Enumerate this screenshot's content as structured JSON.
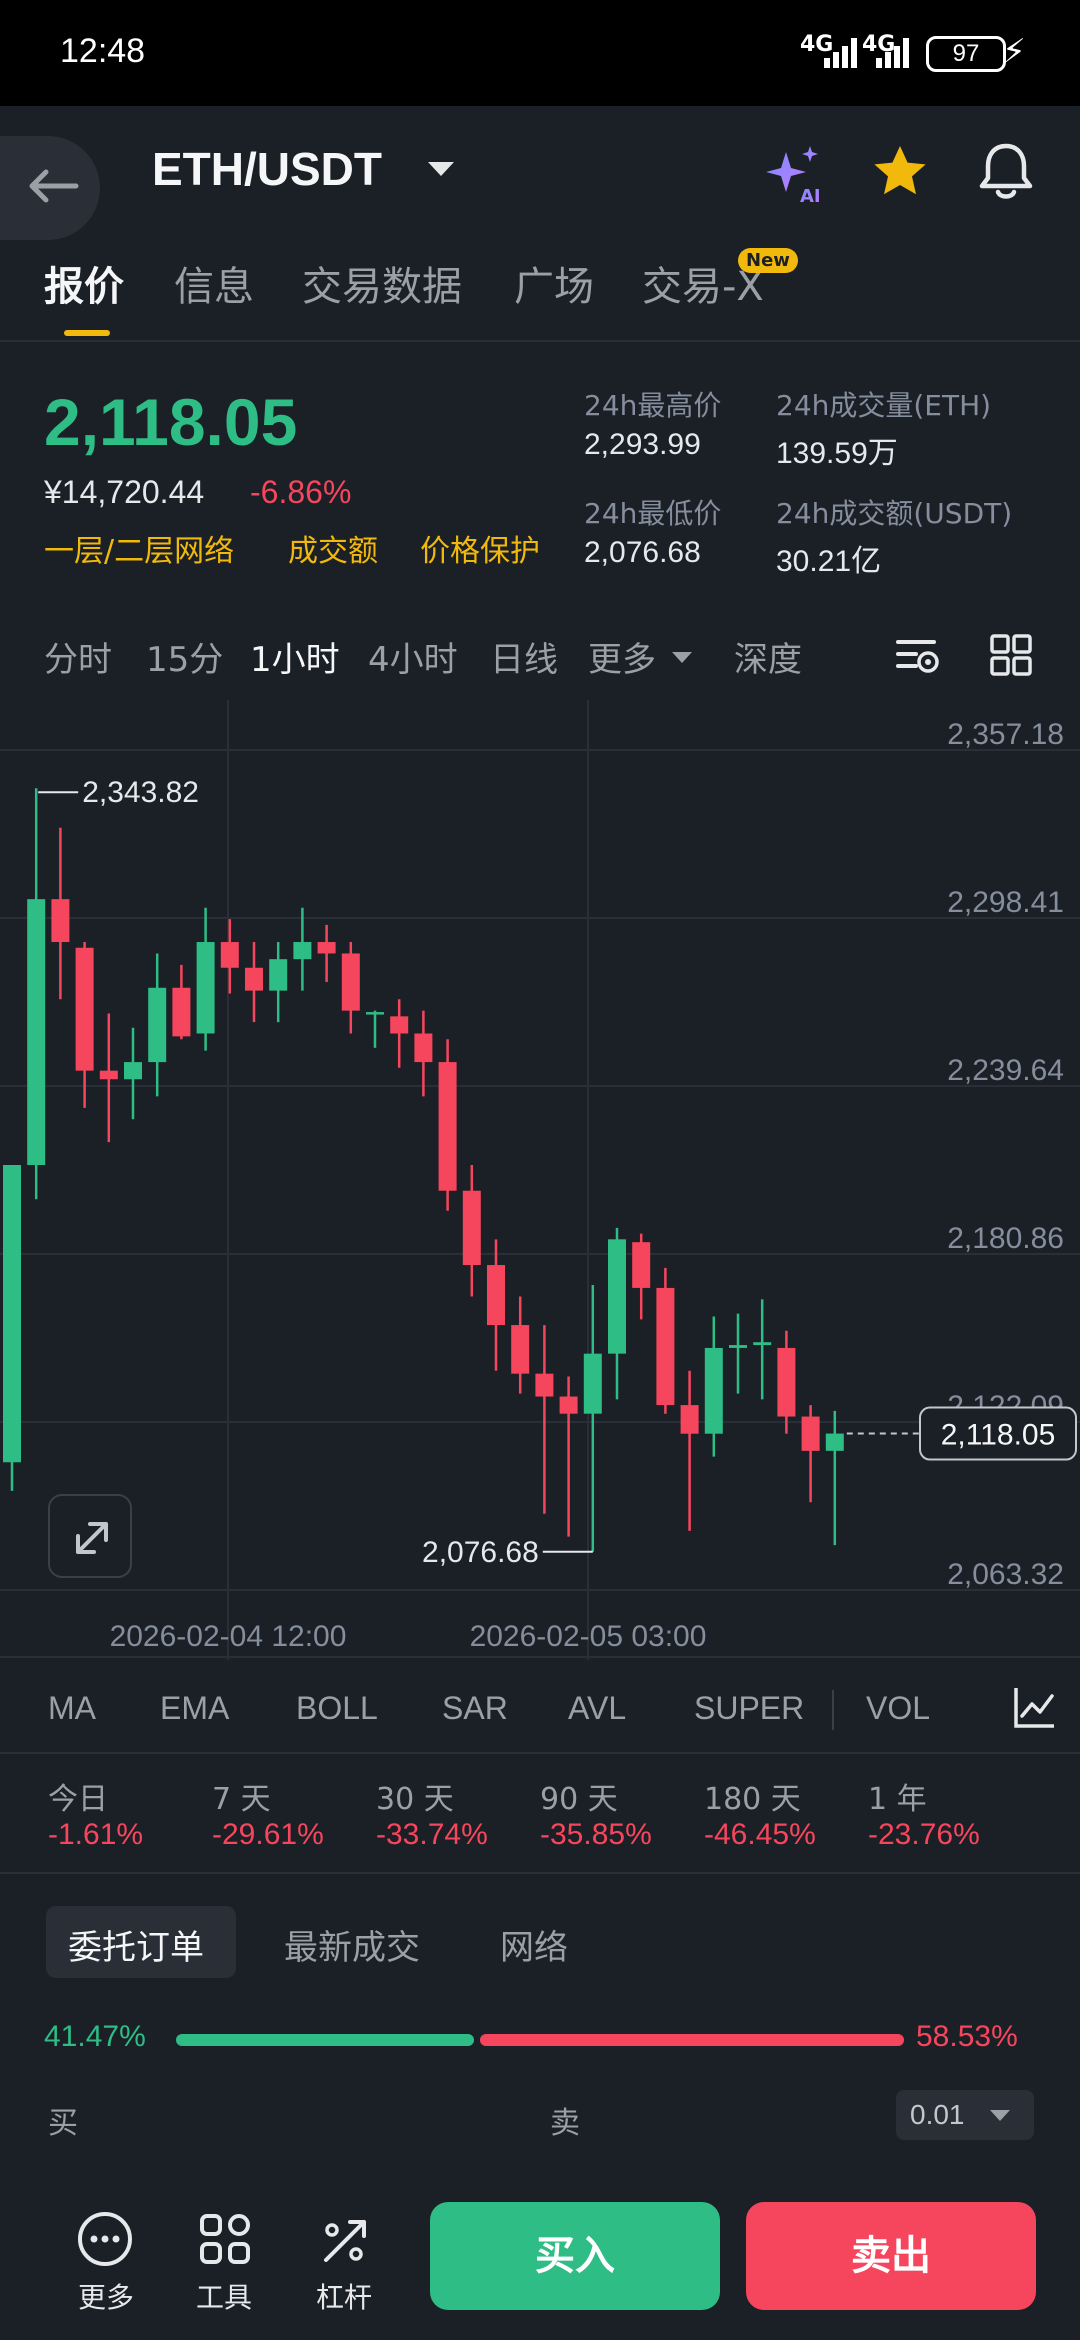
{
  "status_bar": {
    "time": "12:48",
    "signal_1": "4G",
    "signal_2": "4G",
    "battery": "97"
  },
  "header": {
    "pair": "ETH/USDT"
  },
  "tabs": [
    {
      "label": "报价"
    },
    {
      "label": "信息"
    },
    {
      "label": "交易数据"
    },
    {
      "label": "广场"
    },
    {
      "label": "交易-X"
    }
  ],
  "new_badge": "New",
  "ticker": {
    "last_price": "2,118.05",
    "cny_price": "¥14,720.44",
    "change": "-6.86%",
    "tags": [
      "一层/二层网络",
      "成交额",
      "价格保护"
    ],
    "high_label": "24h最高价",
    "high": "2,293.99",
    "low_label": "24h最低价",
    "low": "2,076.68",
    "vol_label": "24h成交量(ETH)",
    "vol": "139.59万",
    "turnover_label": "24h成交额(USDT)",
    "turnover": "30.21亿"
  },
  "intervals": [
    "分时",
    "15分",
    "1小时",
    "4小时",
    "日线",
    "更多",
    "深度"
  ],
  "chart_data": {
    "type": "candlestick",
    "y_ticks": [
      "2,357.18",
      "2,298.41",
      "2,239.64",
      "2,180.86",
      "2,122.09",
      "2,063.32"
    ],
    "x_ticks": [
      "2026-02-04 12:00",
      "2026-02-05 03:00"
    ],
    "high_marker": "2,343.82",
    "low_marker": "2,076.68",
    "current_price": "2,118.05",
    "ylim": [
      2063.32,
      2357.18
    ],
    "candles": [
      {
        "o": 2108.0,
        "h": 2212.0,
        "l": 2098.0,
        "c": 2212.0
      },
      {
        "o": 2212.0,
        "h": 2343.82,
        "l": 2200.0,
        "c": 2305.0
      },
      {
        "o": 2305.0,
        "h": 2330.0,
        "l": 2270.0,
        "c": 2290.0
      },
      {
        "o": 2288.0,
        "h": 2290.0,
        "l": 2232.0,
        "c": 2245.0
      },
      {
        "o": 2245.0,
        "h": 2265.0,
        "l": 2220.0,
        "c": 2242.0
      },
      {
        "o": 2242.0,
        "h": 2260.0,
        "l": 2228.0,
        "c": 2248.0
      },
      {
        "o": 2248.0,
        "h": 2286.0,
        "l": 2236.0,
        "c": 2274.0
      },
      {
        "o": 2274.0,
        "h": 2282.0,
        "l": 2256.0,
        "c": 2257.0
      },
      {
        "o": 2258.0,
        "h": 2302.0,
        "l": 2252.0,
        "c": 2290.0
      },
      {
        "o": 2290.0,
        "h": 2298.0,
        "l": 2272.0,
        "c": 2281.0
      },
      {
        "o": 2281.0,
        "h": 2290.0,
        "l": 2262.0,
        "c": 2273.0
      },
      {
        "o": 2273.0,
        "h": 2290.0,
        "l": 2262.0,
        "c": 2284.0
      },
      {
        "o": 2284.0,
        "h": 2302.0,
        "l": 2273.0,
        "c": 2290.0
      },
      {
        "o": 2290.0,
        "h": 2296.0,
        "l": 2276.0,
        "c": 2286.0
      },
      {
        "o": 2286.0,
        "h": 2290.0,
        "l": 2258.0,
        "c": 2266.0
      },
      {
        "o": 2265.0,
        "h": 2266.0,
        "l": 2253.0,
        "c": 2265.5
      },
      {
        "o": 2264.0,
        "h": 2270.0,
        "l": 2246.0,
        "c": 2258.0
      },
      {
        "o": 2258.0,
        "h": 2266.0,
        "l": 2236.0,
        "c": 2248.0
      },
      {
        "o": 2248.0,
        "h": 2256.0,
        "l": 2196.0,
        "c": 2203.0
      },
      {
        "o": 2203.0,
        "h": 2212.0,
        "l": 2166.0,
        "c": 2177.0
      },
      {
        "o": 2177.0,
        "h": 2186.0,
        "l": 2140.0,
        "c": 2156.0
      },
      {
        "o": 2156.0,
        "h": 2166.0,
        "l": 2132.0,
        "c": 2139.0
      },
      {
        "o": 2139.0,
        "h": 2156.0,
        "l": 2090.0,
        "c": 2131.0
      },
      {
        "o": 2131.0,
        "h": 2138.0,
        "l": 2082.0,
        "c": 2125.0
      },
      {
        "o": 2125.0,
        "h": 2170.0,
        "l": 2076.68,
        "c": 2146.0
      },
      {
        "o": 2146.0,
        "h": 2190.0,
        "l": 2130.0,
        "c": 2186.0
      },
      {
        "o": 2185.0,
        "h": 2188.0,
        "l": 2158.0,
        "c": 2169.0
      },
      {
        "o": 2169.0,
        "h": 2176.0,
        "l": 2125.0,
        "c": 2128.0
      },
      {
        "o": 2128.0,
        "h": 2140.0,
        "l": 2084.0,
        "c": 2118.0
      },
      {
        "o": 2118.0,
        "h": 2159.0,
        "l": 2110.0,
        "c": 2148.0
      },
      {
        "o": 2148.0,
        "h": 2160.0,
        "l": 2132.0,
        "c": 2149.0
      },
      {
        "o": 2149.0,
        "h": 2165.0,
        "l": 2130.0,
        "c": 2150.0
      },
      {
        "o": 2148.0,
        "h": 2154.0,
        "l": 2118.0,
        "c": 2124.0
      },
      {
        "o": 2124.0,
        "h": 2128.0,
        "l": 2094.0,
        "c": 2112.0
      },
      {
        "o": 2112.0,
        "h": 2126.0,
        "l": 2079.0,
        "c": 2118.05
      }
    ]
  },
  "indicators": [
    "MA",
    "EMA",
    "BOLL",
    "SAR",
    "AVL",
    "SUPER",
    "VOL"
  ],
  "performance": [
    {
      "label": "今日",
      "value": "-1.61%"
    },
    {
      "label": "7 天",
      "value": "-29.61%"
    },
    {
      "label": "30 天",
      "value": "-33.74%"
    },
    {
      "label": "90 天",
      "value": "-35.85%"
    },
    {
      "label": "180 天",
      "value": "-46.45%"
    },
    {
      "label": "1 年",
      "value": "-23.76%"
    }
  ],
  "orderbook": {
    "tabs": [
      "委托订单",
      "最新成交",
      "网络"
    ],
    "buy_ratio": "41.47%",
    "sell_ratio": "58.53%",
    "buy_fraction": 0.4147,
    "buy_col": "买",
    "sell_col": "卖",
    "precision": "0.01"
  },
  "bottom": {
    "more": "更多",
    "tools": "工具",
    "leverage": "杠杆",
    "buy": "买入",
    "sell": "卖出"
  },
  "colors": {
    "up": "#2ebd85",
    "down": "#f6465d",
    "accent": "#f0b90b",
    "bg": "#1b1f26"
  }
}
